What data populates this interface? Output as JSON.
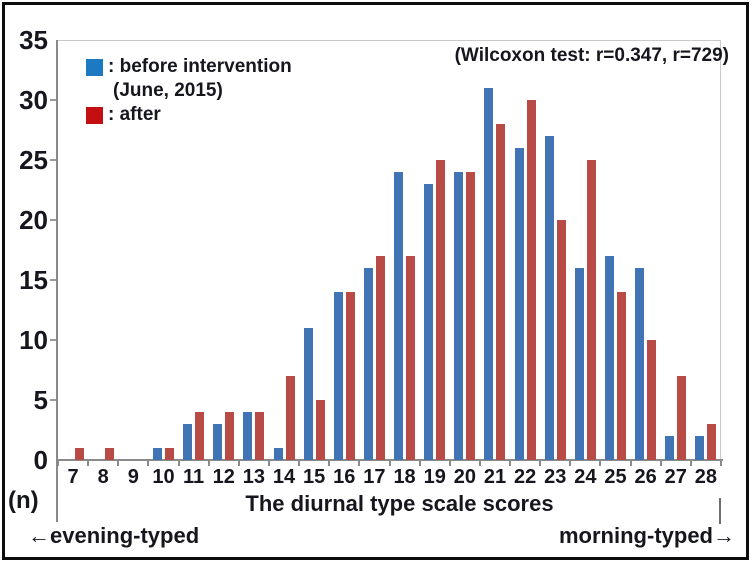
{
  "chart_data": {
    "type": "bar",
    "categories": [
      7,
      8,
      9,
      10,
      11,
      12,
      13,
      14,
      15,
      16,
      17,
      18,
      19,
      20,
      21,
      22,
      23,
      24,
      25,
      26,
      27,
      28
    ],
    "series": [
      {
        "name": "before intervention (June, 2015)",
        "color": "#4174b4",
        "values": [
          0,
          0,
          0,
          1,
          3,
          3,
          4,
          1,
          11,
          14,
          16,
          24,
          23,
          24,
          31,
          26,
          27,
          16,
          17,
          16,
          2,
          2
        ]
      },
      {
        "name": "after",
        "color": "#b94b46",
        "values": [
          1,
          1,
          0,
          1,
          4,
          4,
          4,
          7,
          5,
          14,
          17,
          17,
          25,
          24,
          28,
          30,
          20,
          25,
          14,
          10,
          7,
          3
        ]
      }
    ],
    "ylim": [
      0,
      35
    ],
    "yticks": [
      0,
      5,
      10,
      15,
      20,
      25,
      30,
      35
    ],
    "ylabel": "(n)",
    "xlabel": "The diurnal type scale scores",
    "annotation": "(Wilcoxon test: r=0.347, r=729)",
    "x_axis_left_note": "←evening-typed",
    "x_axis_right_note": "morning-typed→",
    "grid": false,
    "legend": {
      "position": "top-left-inside",
      "entries": [
        {
          "swatch_color": "#1c7ac2",
          "line1": ": before intervention",
          "line2": "(June, 2015)"
        },
        {
          "swatch_color": "#c40f12",
          "line1": ": after"
        }
      ]
    },
    "text_color": "#16161e"
  }
}
